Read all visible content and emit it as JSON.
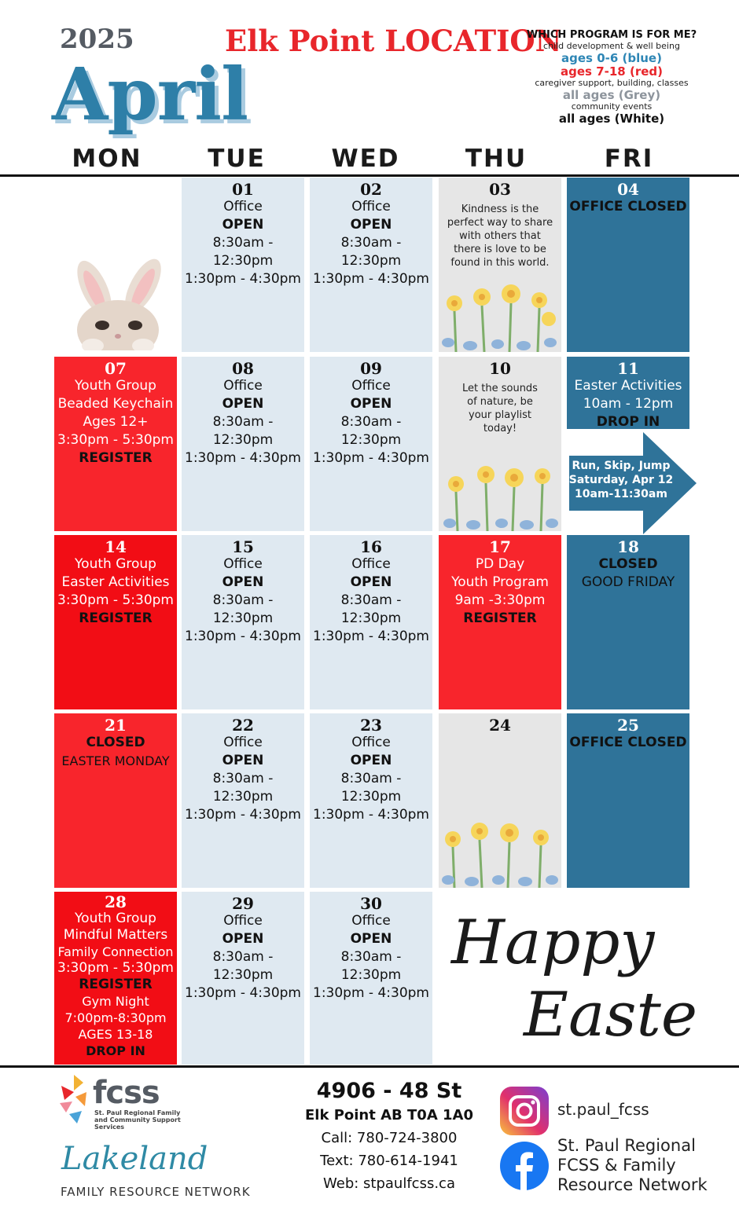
{
  "header": {
    "year": "2025",
    "month": "April",
    "location": "Elk Point LOCATION"
  },
  "legend": {
    "title": "WHICH PROGRAM IS FOR ME?",
    "blue_desc": "child development & well being",
    "blue_label": "ages 0-6 (blue)",
    "red_label": "ages 7-18 (red)",
    "grey_desc": "caregiver support, building, classes",
    "grey_label": "all ages (Grey)",
    "white_desc": "community events",
    "white_label": "all ages (White)"
  },
  "day_headers": [
    "MON",
    "TUE",
    "WED",
    "THU",
    "FRI"
  ],
  "week1": {
    "tue": {
      "num": "01",
      "l1": "Office",
      "l2": "OPEN",
      "l3": "8:30am - 12:30pm",
      "l4": "1:30pm - 4:30pm"
    },
    "wed": {
      "num": "02",
      "l1": "Office",
      "l2": "OPEN",
      "l3": "8:30am - 12:30pm",
      "l4": "1:30pm - 4:30pm"
    },
    "thu": {
      "num": "03",
      "quote": "Kindness is the perfect way to share with others that there is love to be found in this world."
    },
    "fri": {
      "num": "04",
      "l1": "OFFICE CLOSED"
    }
  },
  "week2": {
    "mon": {
      "num": "07",
      "l1": "Youth Group",
      "l2": "Beaded Keychain",
      "l3": "Ages 12+",
      "l4": "3:30pm - 5:30pm",
      "l5": "REGISTER"
    },
    "tue": {
      "num": "08",
      "l1": "Office",
      "l2": "OPEN",
      "l3": "8:30am - 12:30pm",
      "l4": "1:30pm - 4:30pm"
    },
    "wed": {
      "num": "09",
      "l1": "Office",
      "l2": "OPEN",
      "l3": "8:30am - 12:30pm",
      "l4": "1:30pm - 4:30pm"
    },
    "thu": {
      "num": "10",
      "quote": "Let the sounds of nature, be your playlist today!"
    },
    "fri": {
      "num": "11",
      "l1": "Easter Activities",
      "l2": "10am - 12pm",
      "l3": "DROP IN"
    },
    "arrow": {
      "l1": "Run, Skip, Jump",
      "l2": "Saturday, Apr 12",
      "l3": "10am-11:30am"
    }
  },
  "week3": {
    "mon": {
      "num": "14",
      "l1": "Youth Group",
      "l2": "Easter Activities",
      "l3": "3:30pm - 5:30pm",
      "l4": "REGISTER"
    },
    "tue": {
      "num": "15",
      "l1": "Office",
      "l2": "OPEN",
      "l3": "8:30am - 12:30pm",
      "l4": "1:30pm - 4:30pm"
    },
    "wed": {
      "num": "16",
      "l1": "Office",
      "l2": "OPEN",
      "l3": "8:30am - 12:30pm",
      "l4": "1:30pm - 4:30pm"
    },
    "thu": {
      "num": "17",
      "l1": "PD Day",
      "l2": "Youth Program",
      "l3": "9am -3:30pm",
      "l4": "REGISTER"
    },
    "fri": {
      "num": "18",
      "l1": "CLOSED",
      "l2": "GOOD FRIDAY"
    }
  },
  "week4": {
    "mon": {
      "num": "21",
      "l1": "CLOSED",
      "l2": "EASTER MONDAY"
    },
    "tue": {
      "num": "22",
      "l1": "Office",
      "l2": "OPEN",
      "l3": "8:30am - 12:30pm",
      "l4": "1:30pm - 4:30pm"
    },
    "wed": {
      "num": "23",
      "l1": "Office",
      "l2": "OPEN",
      "l3": "8:30am - 12:30pm",
      "l4": "1:30pm - 4:30pm"
    },
    "thu": {
      "num": "24"
    },
    "fri": {
      "num": "25",
      "l1": "OFFICE CLOSED"
    }
  },
  "week5": {
    "mon": {
      "num": "28",
      "l1": "Youth Group",
      "l2": "Mindful Matters",
      "l3": "Family Connection",
      "l4": "3:30pm - 5:30pm",
      "l5": "REGISTER",
      "l6": "Gym Night",
      "l7": "7:00pm-8:30pm",
      "l8": "AGES 13-18",
      "l9": "DROP IN"
    },
    "tue": {
      "num": "29",
      "l1": "Office",
      "l2": "OPEN",
      "l3": "8:30am - 12:30pm",
      "l4": "1:30pm - 4:30pm"
    },
    "wed": {
      "num": "30",
      "l1": "Office",
      "l2": "OPEN",
      "l3": "8:30am - 12:30pm",
      "l4": "1:30pm - 4:30pm"
    },
    "easter_script": "Happy Easter"
  },
  "footer": {
    "fcss_name": "fcss",
    "fcss_sub": "St. Paul Regional Family and Community Support Services",
    "lakeland": "Lakeland",
    "frn": "FAMILY RESOURCE NETWORK",
    "address1": "4906 - 48 St",
    "address2": "Elk Point AB T0A 1A0",
    "call": "Call: 780-724-3800",
    "text": "Text: 780-614-1941",
    "web": "Web: stpaulfcss.ca",
    "instagram": "st.paul_fcss",
    "facebook_l1": "St. Paul Regional",
    "facebook_l2": "FCSS & Family",
    "facebook_l3": "Resource Network"
  }
}
